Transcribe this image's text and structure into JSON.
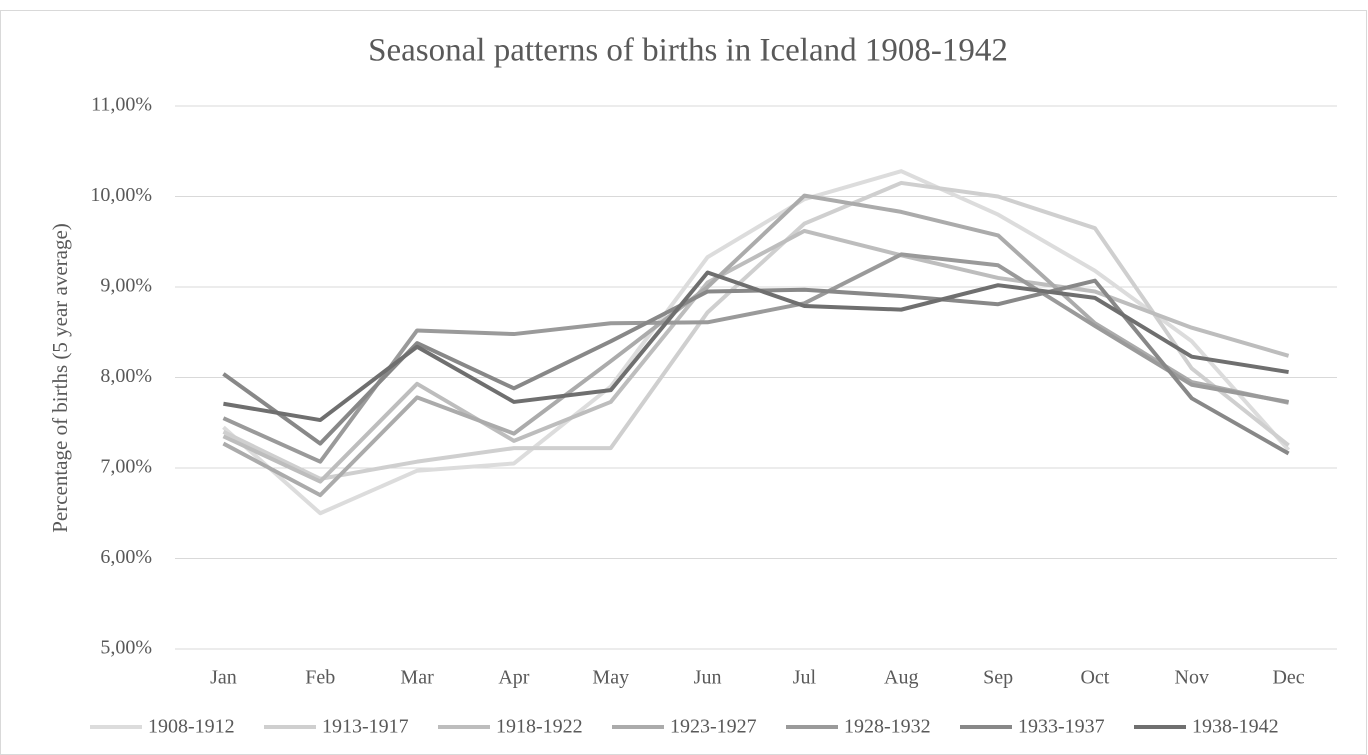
{
  "chart_data": {
    "type": "line",
    "title": "Seasonal patterns of births in Iceland 1908-1942",
    "y_label": "Percentage of births (5 year average)",
    "categories": [
      "Jan",
      "Feb",
      "Mar",
      "Apr",
      "May",
      "Jun",
      "Jul",
      "Aug",
      "Sep",
      "Oct",
      "Nov",
      "Dec"
    ],
    "series": [
      {
        "name": "1908-1912",
        "color": "#dcdcdc",
        "values": [
          7.45,
          6.5,
          6.97,
          7.05,
          7.9,
          9.33,
          9.97,
          10.28,
          9.8,
          9.18,
          8.4,
          7.2
        ]
      },
      {
        "name": "1913-1917",
        "color": "#cfcfcf",
        "values": [
          7.4,
          6.88,
          7.07,
          7.22,
          7.22,
          8.72,
          9.7,
          10.15,
          10.0,
          9.65,
          8.1,
          7.25
        ]
      },
      {
        "name": "1918-1922",
        "color": "#bdbdbd",
        "values": [
          7.35,
          6.85,
          7.93,
          7.3,
          7.73,
          9.05,
          9.62,
          9.35,
          9.1,
          8.95,
          8.55,
          8.24
        ]
      },
      {
        "name": "1923-1927",
        "color": "#ababab",
        "values": [
          7.27,
          6.7,
          7.78,
          7.38,
          8.18,
          9.0,
          10.01,
          9.83,
          9.57,
          8.6,
          7.95,
          7.72
        ]
      },
      {
        "name": "1928-1932",
        "color": "#9a9a9a",
        "values": [
          7.55,
          7.07,
          8.52,
          8.48,
          8.6,
          8.61,
          8.82,
          9.36,
          9.24,
          8.57,
          7.92,
          7.73
        ]
      },
      {
        "name": "1933-1937",
        "color": "#888888",
        "values": [
          8.04,
          7.27,
          8.38,
          7.88,
          8.4,
          8.95,
          8.97,
          8.9,
          8.81,
          9.07,
          7.77,
          7.16
        ]
      },
      {
        "name": "1938-1942",
        "color": "#6f6f6f",
        "values": [
          7.71,
          7.53,
          8.34,
          7.73,
          7.86,
          9.16,
          8.79,
          8.75,
          9.02,
          8.88,
          8.23,
          8.06
        ]
      }
    ],
    "ylim": [
      5,
      11
    ],
    "yticks": [
      {
        "value": 5,
        "label": "5,00%"
      },
      {
        "value": 6,
        "label": "6,00%"
      },
      {
        "value": 7,
        "label": "7,00%"
      },
      {
        "value": 8,
        "label": "8,00%"
      },
      {
        "value": 9,
        "label": "9,00%"
      },
      {
        "value": 10,
        "label": "10,00%"
      },
      {
        "value": 11,
        "label": "11,00%"
      }
    ],
    "grid": true,
    "legend": "bottom"
  }
}
